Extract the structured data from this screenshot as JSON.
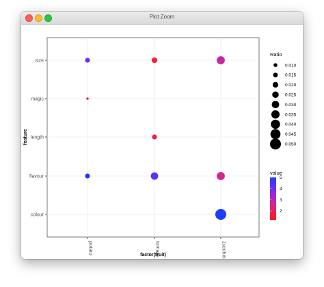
{
  "window": {
    "title": "Plot Zoom"
  },
  "chart_data": {
    "type": "scatter",
    "title": "",
    "xlabel": "factor(fruit)",
    "ylabel": "feature",
    "categories_x": [
      "potato",
      "tomato",
      "zucchini"
    ],
    "categories_y": [
      "colour",
      "flavour",
      "length",
      "magic",
      "size"
    ],
    "points": [
      {
        "x": "potato",
        "y": "size",
        "ratio": 0.016,
        "value": 4.0
      },
      {
        "x": "tomato",
        "y": "size",
        "ratio": 0.02,
        "value": 1.6
      },
      {
        "x": "zucchini",
        "y": "size",
        "ratio": 0.034,
        "value": 2.8
      },
      {
        "x": "potato",
        "y": "magic",
        "ratio": 0.002,
        "value": 1.5
      },
      {
        "x": "tomato",
        "y": "length",
        "ratio": 0.016,
        "value": 1.7
      },
      {
        "x": "potato",
        "y": "flavour",
        "ratio": 0.016,
        "value": 5.0
      },
      {
        "x": "tomato",
        "y": "flavour",
        "ratio": 0.03,
        "value": 4.3
      },
      {
        "x": "zucchini",
        "y": "flavour",
        "ratio": 0.034,
        "value": 2.6
      },
      {
        "x": "zucchini",
        "y": "colour",
        "ratio": 0.05,
        "value": 5.0
      }
    ],
    "size_legend": {
      "title": "Ratio",
      "labels": [
        "0.010",
        "0.015",
        "0.020",
        "0.025",
        "0.030",
        "0.035",
        "0.040",
        "0.045",
        "0.050"
      ]
    },
    "color_legend": {
      "title": "value",
      "labels": [
        "5",
        "4",
        "3",
        "2"
      ],
      "low_color": "#ff1a1a",
      "high_color": "#1f3dff",
      "range": [
        1.2,
        5
      ]
    },
    "grid": true,
    "legend_position": "right"
  }
}
